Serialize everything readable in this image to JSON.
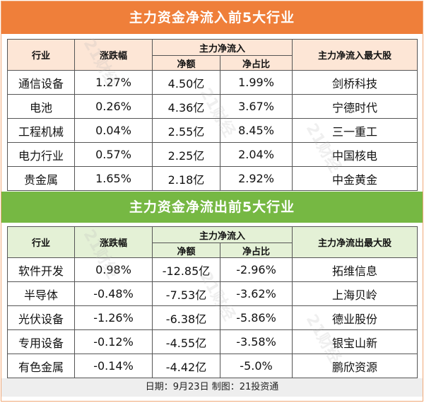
{
  "inflow": {
    "title": "主力资金净流入前5大行业",
    "headers": {
      "industry": "行业",
      "change": "涨跌幅",
      "net_group": "主力净流入",
      "amount": "净额",
      "ratio": "净占比",
      "top_stock": "主力净流入最大股"
    },
    "rows": [
      {
        "industry": "通信设备",
        "change": "1.27%",
        "amount": "4.50亿",
        "ratio": "1.99%",
        "top_stock": "剑桥科技"
      },
      {
        "industry": "电池",
        "change": "0.26%",
        "amount": "4.36亿",
        "ratio": "3.67%",
        "top_stock": "宁德时代"
      },
      {
        "industry": "工程机械",
        "change": "0.04%",
        "amount": "2.55亿",
        "ratio": "8.45%",
        "top_stock": "三一重工"
      },
      {
        "industry": "电力行业",
        "change": "0.57%",
        "amount": "2.25亿",
        "ratio": "2.04%",
        "top_stock": "中国核电"
      },
      {
        "industry": "贵金属",
        "change": "1.65%",
        "amount": "2.18亿",
        "ratio": "2.92%",
        "top_stock": "中金黄金"
      }
    ]
  },
  "outflow": {
    "title": "主力资金净流出前5大行业",
    "headers": {
      "industry": "行业",
      "change": "涨跌幅",
      "net_group": "主力净流入",
      "amount": "净额",
      "ratio": "净占比",
      "top_stock": "主力净流出最大股"
    },
    "rows": [
      {
        "industry": "软件开发",
        "change": "0.98%",
        "amount": "-12.85亿",
        "ratio": "-2.96%",
        "top_stock": "拓维信息"
      },
      {
        "industry": "半导体",
        "change": "-0.48%",
        "amount": "-7.53亿",
        "ratio": "-3.62%",
        "top_stock": "上海贝岭"
      },
      {
        "industry": "光伏设备",
        "change": "-1.26%",
        "amount": "-6.38亿",
        "ratio": "-5.86%",
        "top_stock": "德业股份"
      },
      {
        "industry": "专用设备",
        "change": "-0.12%",
        "amount": "-4.55亿",
        "ratio": "-3.58%",
        "top_stock": "银宝山新"
      },
      {
        "industry": "有色金属",
        "change": "-0.14%",
        "amount": "-4.42亿",
        "ratio": "-5.0%",
        "top_stock": "鹏欣资源"
      }
    ]
  },
  "footer": "日期：9月23日 制图：21投资通",
  "watermark": "21财经",
  "colors": {
    "inflow_accent": "#ef7f3a",
    "outflow_accent": "#76b843"
  }
}
